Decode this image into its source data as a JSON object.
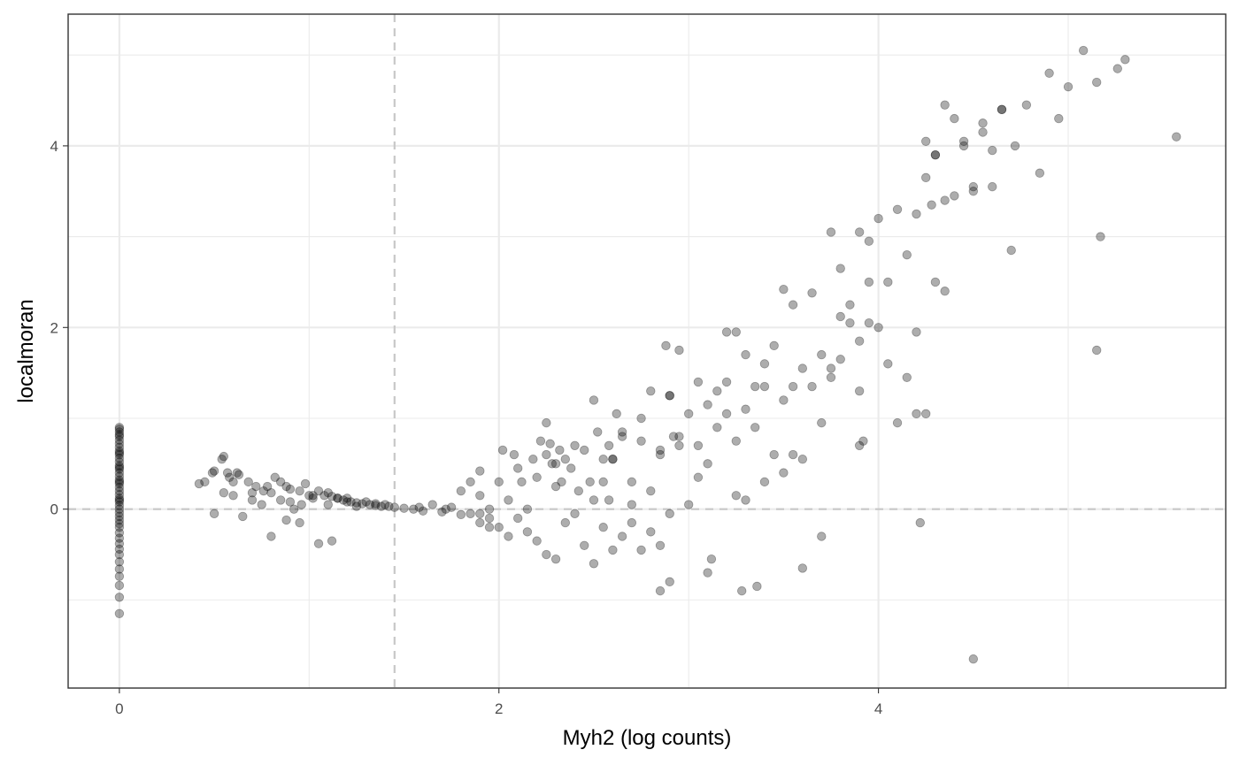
{
  "chart_data": {
    "type": "scatter",
    "xlabel": "Myh2 (log counts)",
    "ylabel": "localmoran",
    "xlim": [
      -0.27,
      5.83
    ],
    "ylim": [
      -1.97,
      5.45
    ],
    "x_ticks": [
      0,
      2,
      4
    ],
    "y_ticks": [
      0,
      2,
      4
    ],
    "x_tick_labels": [
      "0",
      "2",
      "4"
    ],
    "y_tick_labels": [
      "0",
      "2",
      "4"
    ],
    "grid": true,
    "theme": "black-and-white",
    "point_color": "#000000",
    "point_alpha": 0.32,
    "reference_lines": {
      "vertical_x": 1.45,
      "horizontal_y": 0
    },
    "x": [
      0,
      0,
      0,
      0,
      0,
      0,
      0,
      0,
      0,
      0,
      0,
      0,
      0,
      0,
      0,
      0,
      0,
      0,
      0,
      0,
      0,
      0,
      0,
      0,
      0,
      0,
      0,
      0,
      0,
      0,
      0,
      0,
      0,
      0,
      0,
      0,
      0,
      0,
      0,
      0,
      0,
      0,
      0,
      0,
      0,
      0.42,
      0.45,
      0.49,
      0.5,
      0.54,
      0.55,
      0.57,
      0.58,
      0.6,
      0.63,
      0.68,
      0.72,
      0.76,
      0.8,
      0.82,
      0.88,
      0.9,
      0.95,
      0.98,
      1.0,
      1.02,
      1.05,
      1.08,
      1.1,
      1.12,
      1.15,
      1.18,
      1.2,
      1.22,
      1.25,
      1.28,
      1.3,
      1.32,
      1.35,
      1.38,
      1.4,
      1.45,
      1.5,
      1.55,
      1.6,
      1.65,
      1.7,
      1.75,
      1.8,
      1.85,
      1.9,
      1.95,
      0.5,
      0.55,
      0.6,
      0.65,
      0.7,
      0.75,
      0.8,
      0.85,
      0.9,
      0.95,
      1.05,
      1.12,
      0.78,
      0.85,
      0.92,
      1.02,
      1.15,
      1.25,
      1.35,
      0.62,
      0.7,
      0.88,
      0.96,
      1.1,
      1.2,
      1.42,
      1.58,
      1.72,
      1.9,
      1.95,
      1.8,
      1.85,
      1.9,
      1.95,
      2.0,
      2.02,
      2.05,
      2.08,
      2.1,
      2.12,
      2.15,
      2.18,
      2.2,
      2.22,
      2.25,
      2.28,
      2.3,
      2.32,
      2.35,
      2.38,
      2.4,
      2.42,
      2.45,
      2.48,
      2.5,
      2.52,
      2.55,
      2.58,
      2.6,
      2.65,
      1.9,
      2.0,
      2.05,
      2.1,
      2.15,
      2.2,
      2.25,
      2.3,
      2.35,
      2.4,
      2.45,
      2.5,
      2.55,
      2.6,
      2.65,
      2.7,
      2.75,
      2.8,
      2.85,
      2.9,
      2.25,
      2.27,
      2.3,
      2.33,
      2.5,
      2.55,
      2.58,
      2.62,
      2.7,
      2.75,
      2.8,
      2.85,
      2.9,
      2.95,
      3.0,
      3.05,
      3.1,
      3.15,
      3.2,
      3.25,
      2.6,
      2.65,
      2.7,
      2.75,
      2.8,
      2.85,
      2.9,
      2.95,
      3.0,
      3.05,
      3.1,
      3.15,
      3.2,
      3.25,
      3.3,
      3.35,
      3.4,
      3.45,
      3.5,
      3.55,
      2.88,
      2.92,
      2.95,
      3.05,
      3.2,
      3.25,
      3.3,
      3.35,
      3.4,
      3.45,
      3.5,
      3.55,
      3.6,
      3.65,
      3.7,
      3.75,
      3.8,
      3.85,
      3.9,
      3.95,
      2.85,
      2.9,
      3.1,
      3.12,
      3.28,
      3.36,
      3.6,
      3.7,
      3.9,
      3.92,
      4.2,
      4.22,
      4.5,
      3.3,
      3.4,
      3.5,
      3.55,
      3.6,
      3.65,
      3.7,
      3.75,
      3.8,
      3.85,
      3.9,
      3.95,
      4.0,
      4.05,
      4.1,
      4.15,
      4.2,
      4.25,
      4.3,
      4.35,
      3.75,
      3.8,
      3.9,
      3.95,
      4.0,
      4.05,
      4.1,
      4.15,
      4.2,
      4.25,
      4.28,
      4.3,
      4.35,
      4.4,
      4.45,
      4.5,
      4.55,
      4.6,
      4.65,
      4.7,
      4.25,
      4.3,
      4.35,
      4.4,
      4.45,
      4.5,
      4.55,
      4.6,
      4.65,
      4.72,
      4.78,
      4.85,
      4.9,
      4.95,
      5.0,
      5.08,
      5.15,
      5.26,
      5.3,
      5.57,
      5.17,
      5.15
    ],
    "y": [
      0.9,
      0.85,
      0.8,
      0.76,
      0.72,
      0.68,
      0.64,
      0.6,
      0.56,
      0.52,
      0.48,
      0.44,
      0.4,
      0.36,
      0.32,
      0.28,
      0.24,
      0.2,
      0.16,
      0.12,
      0.08,
      0.04,
      0.0,
      -0.04,
      -0.08,
      -0.12,
      -0.16,
      -0.2,
      -0.26,
      -0.32,
      -0.38,
      -0.44,
      -0.5,
      -0.58,
      -0.66,
      -0.74,
      -0.84,
      -0.97,
      -1.15,
      0.88,
      0.82,
      0.62,
      0.46,
      0.3,
      0.1,
      0.28,
      0.3,
      0.4,
      -0.05,
      0.55,
      0.58,
      0.4,
      0.35,
      0.15,
      0.38,
      0.3,
      0.25,
      0.2,
      0.18,
      0.35,
      0.25,
      0.22,
      0.2,
      0.28,
      0.15,
      0.12,
      0.2,
      0.15,
      0.18,
      0.14,
      0.12,
      0.1,
      0.12,
      0.08,
      0.07,
      0.06,
      0.08,
      0.05,
      0.04,
      0.03,
      0.05,
      0.02,
      0.01,
      0.0,
      -0.02,
      0.05,
      -0.03,
      0.02,
      -0.06,
      0.3,
      0.42,
      -0.1,
      0.42,
      0.18,
      0.3,
      -0.08,
      0.1,
      0.05,
      -0.3,
      0.3,
      0.08,
      -0.15,
      -0.38,
      -0.35,
      0.25,
      0.1,
      0.0,
      0.15,
      0.12,
      0.03,
      0.06,
      0.4,
      0.18,
      -0.12,
      0.05,
      0.05,
      0.08,
      0.03,
      0.02,
      0.0,
      -0.15,
      -0.2,
      0.2,
      -0.05,
      0.15,
      0.0,
      0.3,
      0.65,
      0.1,
      0.6,
      0.45,
      0.3,
      0.0,
      0.55,
      0.35,
      0.75,
      0.6,
      0.5,
      0.25,
      0.65,
      0.55,
      0.45,
      0.7,
      0.2,
      0.65,
      0.3,
      0.1,
      0.85,
      0.55,
      0.7,
      0.55,
      0.85,
      -0.05,
      -0.2,
      -0.3,
      -0.1,
      -0.25,
      -0.35,
      -0.5,
      -0.55,
      -0.15,
      -0.05,
      -0.4,
      -0.6,
      -0.2,
      -0.45,
      -0.3,
      -0.15,
      -0.45,
      -0.25,
      -0.4,
      -0.05,
      0.95,
      0.72,
      0.5,
      0.3,
      1.2,
      0.3,
      0.1,
      1.05,
      0.05,
      0.75,
      1.3,
      0.6,
      1.25,
      0.8,
      1.05,
      0.35,
      1.15,
      1.3,
      1.05,
      0.15,
      0.55,
      0.8,
      0.3,
      1.0,
      0.2,
      0.65,
      1.25,
      0.7,
      0.05,
      1.4,
      0.5,
      0.9,
      1.4,
      0.75,
      1.1,
      0.9,
      1.35,
      0.6,
      1.2,
      1.35,
      1.8,
      0.8,
      1.75,
      0.7,
      1.95,
      1.95,
      1.7,
      1.35,
      1.6,
      1.8,
      2.42,
      2.25,
      1.55,
      2.38,
      1.7,
      1.55,
      2.12,
      2.25,
      1.85,
      2.05,
      -0.9,
      -0.8,
      -0.7,
      -0.55,
      -0.9,
      -0.85,
      -0.65,
      -0.3,
      0.7,
      0.75,
      1.05,
      -0.15,
      -1.65,
      0.1,
      0.3,
      0.4,
      0.6,
      0.55,
      1.35,
      0.95,
      1.45,
      1.65,
      2.05,
      1.3,
      2.5,
      2.0,
      1.6,
      0.95,
      1.45,
      1.95,
      1.05,
      2.5,
      2.4,
      3.05,
      2.65,
      3.05,
      2.95,
      3.2,
      2.5,
      3.3,
      2.8,
      3.25,
      3.65,
      3.35,
      3.9,
      3.4,
      3.45,
      4.05,
      3.55,
      4.25,
      3.95,
      4.4,
      2.85,
      4.05,
      3.9,
      4.45,
      4.3,
      4.0,
      3.5,
      4.15,
      3.55,
      4.4,
      4.0,
      4.45,
      3.7,
      4.8,
      4.3,
      4.65,
      5.05,
      4.7,
      4.85,
      4.95,
      4.1,
      3.0,
      1.75
    ]
  }
}
